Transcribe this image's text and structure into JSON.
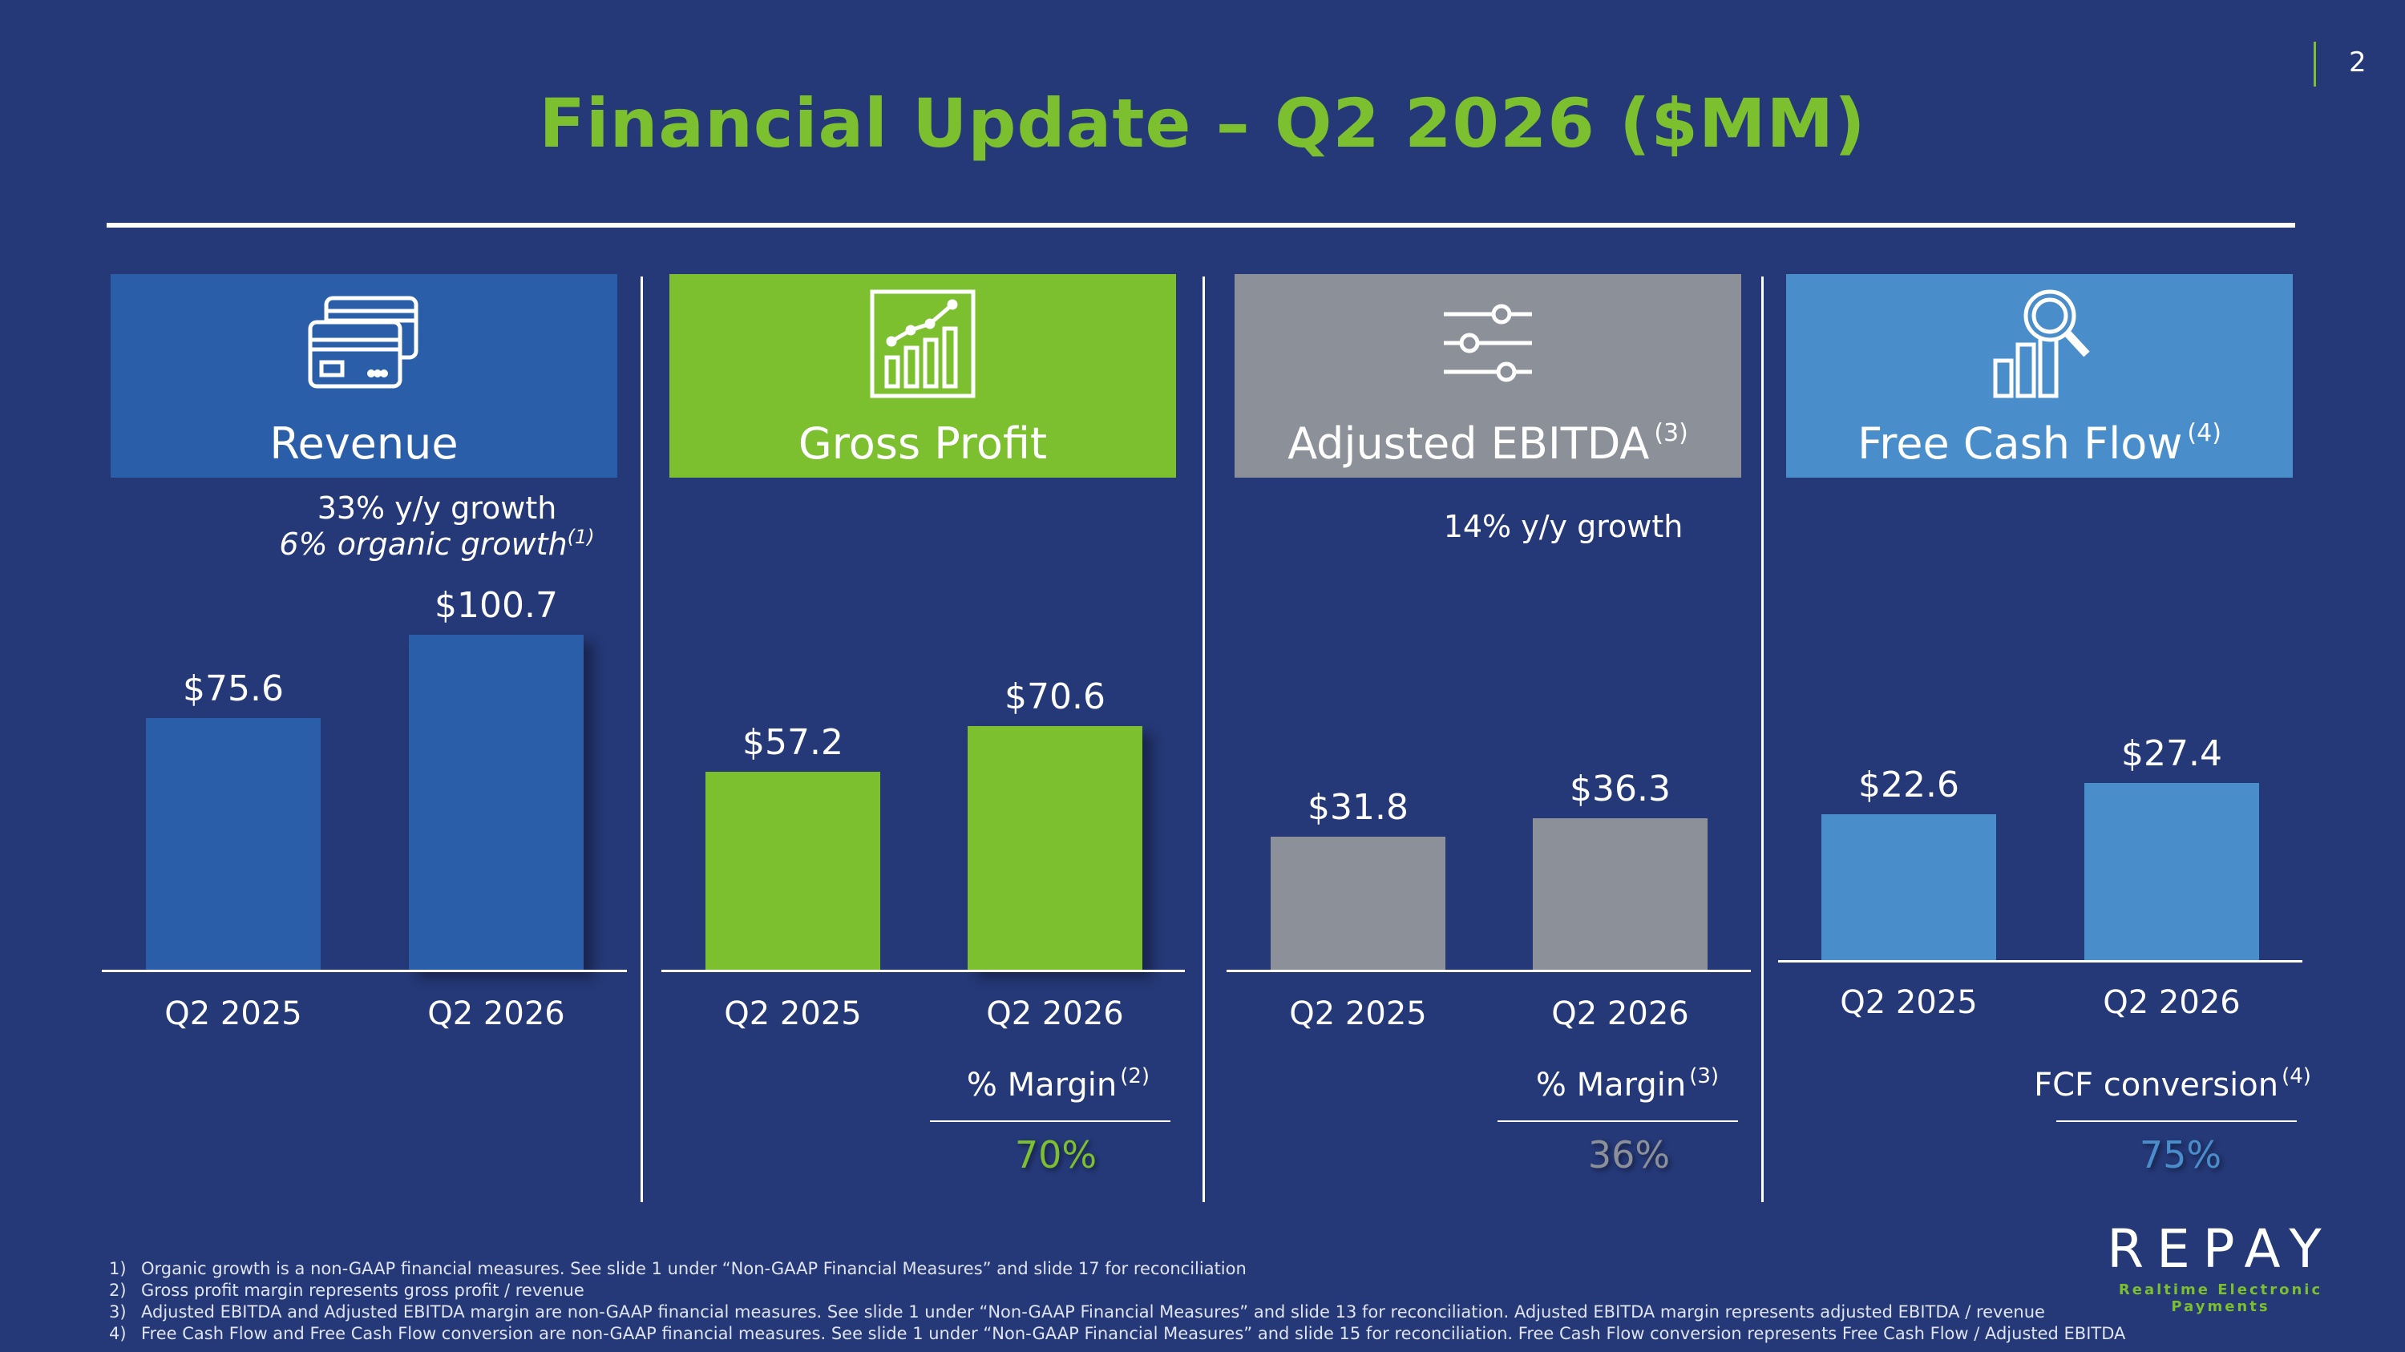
{
  "page_number": "2",
  "title": "Financial Update – Q2 2026 ($MM)",
  "colors": {
    "background": "#253877",
    "revenue": "#2a5ea9",
    "gross_profit": "#7cbf2f",
    "ebitda": "#8c9099",
    "fcf": "#4a8dcb",
    "title": "#7cbf2f"
  },
  "panels": [
    {
      "key": "revenue",
      "label": "Revenue",
      "sup": "",
      "icon": "credit-cards-icon",
      "notes": [
        "33% y/y growth",
        "6% organic growth"
      ],
      "notes_sup": "(1)"
    },
    {
      "key": "gross_profit",
      "label": "Gross Profit",
      "sup": "",
      "icon": "growth-chart-icon",
      "metric_label": "% Margin",
      "metric_sup": "(2)",
      "metric_value": "70%"
    },
    {
      "key": "ebitda",
      "label": "Adjusted EBITDA",
      "sup": "(3)",
      "icon": "sliders-icon",
      "notes": [
        "14% y/y growth"
      ],
      "metric_label": "% Margin",
      "metric_sup": "(3)",
      "metric_value": "36%"
    },
    {
      "key": "fcf",
      "label": "Free Cash Flow",
      "sup": "(4)",
      "icon": "analytics-search-icon",
      "metric_label": "FCF conversion",
      "metric_sup": "(4)",
      "metric_value": "75%"
    }
  ],
  "chart_data": [
    {
      "type": "bar",
      "title": "Revenue",
      "categories": [
        "Q2 2025",
        "Q2 2026"
      ],
      "values": [
        75.6,
        100.7
      ],
      "value_labels": [
        "$75.6",
        "$100.7"
      ],
      "color": "#2a5ea9"
    },
    {
      "type": "bar",
      "title": "Gross Profit",
      "categories": [
        "Q2 2025",
        "Q2 2026"
      ],
      "values": [
        57.2,
        70.6
      ],
      "value_labels": [
        "$57.2",
        "$70.6"
      ],
      "color": "#7cbf2f"
    },
    {
      "type": "bar",
      "title": "Adjusted EBITDA",
      "categories": [
        "Q2 2025",
        "Q2 2026"
      ],
      "values": [
        31.8,
        36.3
      ],
      "value_labels": [
        "$31.8",
        "$36.3"
      ],
      "color": "#8c9099"
    },
    {
      "type": "bar",
      "title": "Free Cash Flow",
      "categories": [
        "Q2 2025",
        "Q2 2026"
      ],
      "values": [
        22.6,
        27.4
      ],
      "value_labels": [
        "$22.6",
        "$27.4"
      ],
      "color": "#4a8dcb"
    }
  ],
  "footnotes": [
    {
      "num": "1)",
      "text": "Organic growth is a non-GAAP financial measures. See slide 1 under “Non-GAAP Financial Measures” and slide 17 for reconciliation"
    },
    {
      "num": "2)",
      "text": "Gross profit margin represents gross profit / revenue"
    },
    {
      "num": "3)",
      "text": "Adjusted EBITDA and Adjusted EBITDA margin are non-GAAP financial measures. See slide 1 under “Non-GAAP Financial Measures” and slide 13 for reconciliation. Adjusted EBITDA margin represents adjusted EBITDA / revenue"
    },
    {
      "num": "4)",
      "text": "Free Cash Flow and Free Cash Flow conversion are non-GAAP financial measures. See slide 1 under “Non-GAAP Financial Measures” and slide 15 for reconciliation. Free Cash Flow conversion represents Free Cash Flow / Adjusted EBITDA"
    }
  ],
  "logo": {
    "word": "REPAY",
    "tagline": "Realtime Electronic Payments"
  }
}
